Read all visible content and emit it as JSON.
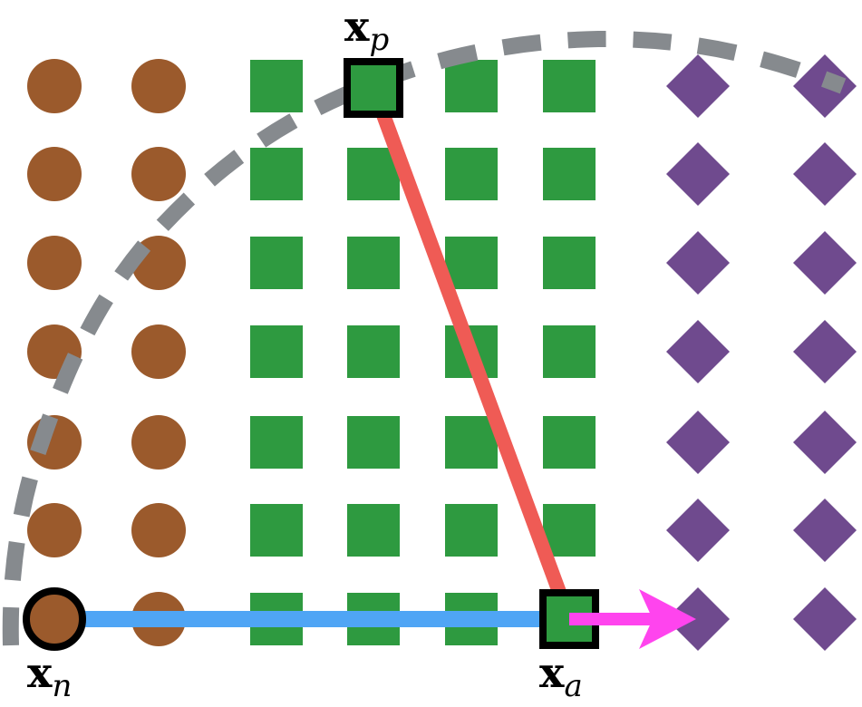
{
  "labels": {
    "positive": {
      "base": "x",
      "sub": "p"
    },
    "negative": {
      "base": "x",
      "sub": "n"
    },
    "anchor": {
      "base": "x",
      "sub": "a"
    }
  }
}
